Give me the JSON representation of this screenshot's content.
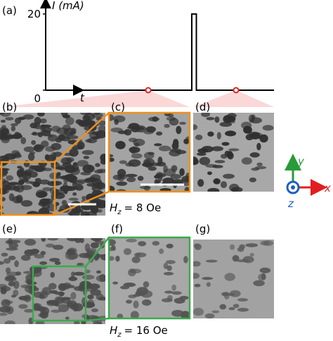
{
  "chart_data": {
    "type": "line",
    "panel_label": "(a)",
    "y_label": "I (mA)",
    "x_label": "t",
    "x": [
      0,
      0.64,
      0.64,
      0.66,
      0.66,
      1
    ],
    "xlim": [
      0,
      1
    ],
    "series": [
      {
        "color": "#000000",
        "values": [
          0,
          0,
          20,
          20,
          0,
          0
        ]
      }
    ],
    "ylim": [
      0,
      22
    ],
    "yticks": [
      0,
      20
    ]
  },
  "panels": {
    "labels": [
      "(b)",
      "(c)",
      "(d)",
      "(e)",
      "(f)",
      "(g)"
    ],
    "field_8": {
      "symbol": "H",
      "subscript": "z",
      "value": "= 8 Oe"
    },
    "field_16": {
      "symbol": "H",
      "subscript": "z",
      "value": "= 16 Oe"
    }
  },
  "axes_icon": {
    "y": "y",
    "x": "x",
    "z": "z"
  }
}
